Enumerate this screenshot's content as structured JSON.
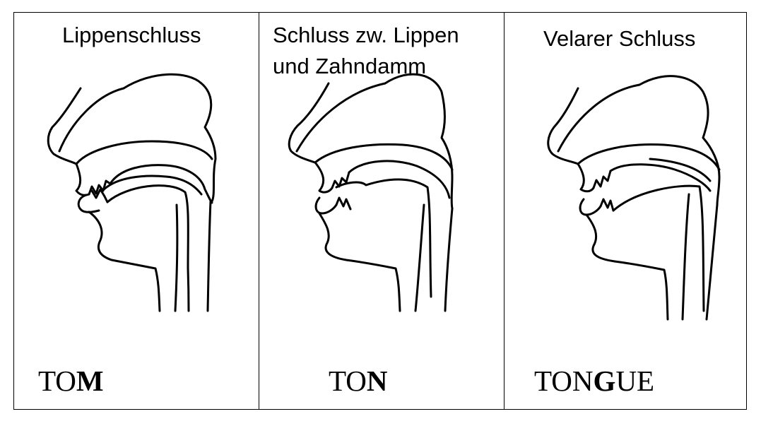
{
  "panels": [
    {
      "title": "Lippenschluss",
      "word_plain": "TO",
      "word_bold": "M",
      "word_tail": ""
    },
    {
      "title": "Schluss zw. Lippen\nund Zahndamm",
      "word_plain": "TO",
      "word_bold": "N",
      "word_tail": ""
    },
    {
      "title": "Velarer Schluss",
      "word_plain": "TON",
      "word_bold": "G",
      "word_tail": "UE"
    }
  ]
}
